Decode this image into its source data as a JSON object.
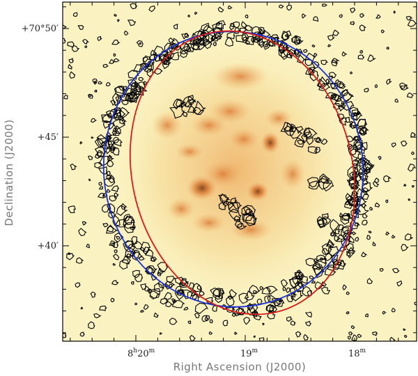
{
  "image": {
    "subject": "radio continuum image of a supernova remnant with contour overlay and two fitted ellipses",
    "colors": {
      "background": "#fbf3c2",
      "emission_dim": "#f6dc9a",
      "emission_mid": "#efb36a",
      "emission_bright": "#d9722b",
      "emission_peak": "#7a3a12",
      "contour": "#000000",
      "ellipse_blue": "#1a2fd6",
      "ellipse_red": "#d81a1a",
      "frame": "#000000"
    }
  },
  "axes": {
    "xlabel": "Right Ascension (J2000)",
    "ylabel": "Declination (J2000)",
    "x_ticks": [
      {
        "h": "8",
        "m": "20",
        "hu": "h",
        "mu": "m"
      },
      {
        "h": "",
        "m": "19",
        "hu": "",
        "mu": "m"
      },
      {
        "h": "",
        "m": "18",
        "hu": "",
        "mu": "m"
      }
    ],
    "y_ticks": [
      {
        "label": "+70°50′"
      },
      {
        "label": "+45′"
      },
      {
        "label": "+40′"
      }
    ]
  }
}
